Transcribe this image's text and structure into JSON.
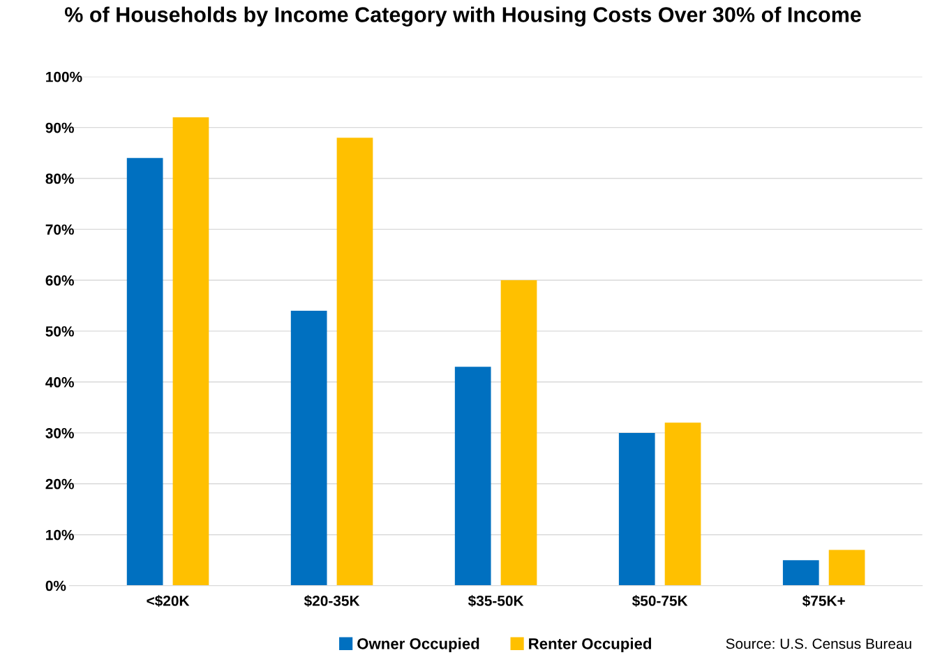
{
  "chart_data": {
    "type": "bar",
    "title": "% of Households by Income Category with Housing Costs Over 30% of Income",
    "categories": [
      "<$20K",
      "$20-35K",
      "$35-50K",
      "$50-75K",
      "$75K+"
    ],
    "series": [
      {
        "name": "Owner Occupied",
        "color": "#0070c0",
        "values": [
          84,
          54,
          43,
          30,
          5
        ]
      },
      {
        "name": "Renter Occupied",
        "color": "#ffc000",
        "values": [
          92,
          88,
          60,
          32,
          7
        ]
      }
    ],
    "ylim": [
      0,
      100
    ],
    "yticks": [
      {
        "value": 0,
        "label": "0%"
      },
      {
        "value": 10,
        "label": "10%"
      },
      {
        "value": 20,
        "label": "20%"
      },
      {
        "value": 30,
        "label": "30%"
      },
      {
        "value": 40,
        "label": "40%"
      },
      {
        "value": 50,
        "label": "50%"
      },
      {
        "value": 60,
        "label": "60%"
      },
      {
        "value": 70,
        "label": "70%"
      },
      {
        "value": 80,
        "label": "80%"
      },
      {
        "value": 90,
        "label": "90%"
      },
      {
        "value": 100,
        "label": "100%"
      }
    ],
    "grid": "y",
    "legend": "bottom",
    "annotations": [
      "Source: U.S. Census Bureau"
    ]
  }
}
